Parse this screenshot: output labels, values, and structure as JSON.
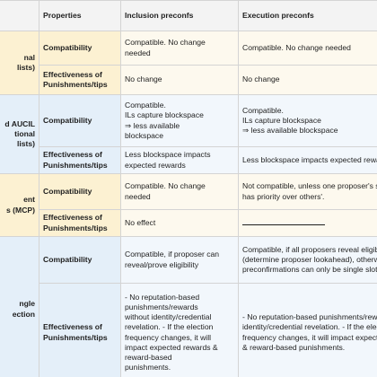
{
  "headers": [
    "Properties",
    "Inclusion preconfs",
    "Execution preconfs"
  ],
  "groups": [
    {
      "label_lines": [
        "nal",
        "lists)"
      ],
      "rows": [
        {
          "property": "Compatibility",
          "inclusion": [
            "Compatible. No change",
            "needed"
          ],
          "execution": [
            "Compatible. No change needed"
          ]
        },
        {
          "property": "Effectiveness of Punishments/tips",
          "inclusion": [
            "No change"
          ],
          "execution": [
            "No change"
          ]
        }
      ]
    },
    {
      "label_lines": [
        "d AUCIL",
        "tional",
        "lists)"
      ],
      "rows": [
        {
          "property": "Compatibility",
          "inclusion": [
            "Compatible.",
            "ILs capture blockspace",
            "⇒ less available",
            "blockspace"
          ],
          "execution": [
            "Compatible.",
            "ILs capture blockspace",
            "⇒ less available blockspace"
          ]
        },
        {
          "property": "Effectiveness of Punishments/tips",
          "inclusion": [
            "Less blockspace impacts",
            "expected rewards"
          ],
          "execution": [
            "Less blockspace impacts expected rewards"
          ]
        }
      ]
    },
    {
      "label_lines": [
        "ent",
        "s (MCP)"
      ],
      "rows": [
        {
          "property": "Compatibility",
          "inclusion": [
            "Compatible. No change",
            "needed"
          ],
          "execution": [
            "Not compatible, unless one proposer's sub-",
            "has priority over others'."
          ]
        },
        {
          "property": "Effectiveness of Punishments/tips",
          "inclusion": [
            "No effect"
          ],
          "execution": []
        }
      ]
    },
    {
      "label_lines": [
        "ngle",
        "ection"
      ],
      "rows": [
        {
          "property": "Compatibility",
          "inclusion": [
            "Compatible, if proposer can",
            "reveal/prove eligibility"
          ],
          "execution": [
            "Compatible, if all proposers reveal eligibili",
            "(determine proposer lookahead), otherwise",
            "preconfirmations can only be single slot."
          ]
        },
        {
          "property": "Effectiveness of Punishments/tips",
          "inclusion": [
            "- No reputation-based",
            "punishments/rewards",
            "without identity/credential",
            "revelation. - If the election",
            "frequency changes, it will",
            "impact expected rewards &",
            "reward-based",
            "punishments."
          ],
          "execution": [
            "- No reputation-based punishments/reward",
            "identity/credential revelation. - If the electio",
            "frequency changes, it will impact expected r",
            "& reward-based punishments."
          ]
        }
      ]
    }
  ],
  "colors": {
    "yellow_label": "#fcf1d2",
    "blue_label": "#e4eff9",
    "yellow_cell": "#fdf9ee",
    "blue_cell": "#f2f7fc",
    "border": "#d4d4d4"
  }
}
